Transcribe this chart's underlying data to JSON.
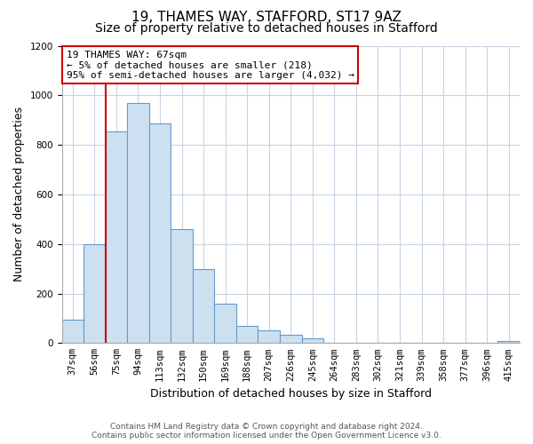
{
  "title": "19, THAMES WAY, STAFFORD, ST17 9AZ",
  "subtitle": "Size of property relative to detached houses in Stafford",
  "xlabel": "Distribution of detached houses by size in Stafford",
  "ylabel": "Number of detached properties",
  "categories": [
    "37sqm",
    "56sqm",
    "75sqm",
    "94sqm",
    "113sqm",
    "132sqm",
    "150sqm",
    "169sqm",
    "188sqm",
    "207sqm",
    "226sqm",
    "245sqm",
    "264sqm",
    "283sqm",
    "302sqm",
    "321sqm",
    "339sqm",
    "358sqm",
    "377sqm",
    "396sqm",
    "415sqm"
  ],
  "values": [
    95,
    400,
    855,
    970,
    885,
    460,
    300,
    160,
    70,
    50,
    32,
    18,
    0,
    0,
    0,
    0,
    0,
    0,
    0,
    0,
    8
  ],
  "bar_color": "#cce0f0",
  "bar_edge_color": "#6699cc",
  "highlight_color": "#cc0000",
  "annotation_title": "19 THAMES WAY: 67sqm",
  "annotation_line1": "← 5% of detached houses are smaller (218)",
  "annotation_line2": "95% of semi-detached houses are larger (4,032) →",
  "annotation_box_color": "#ffffff",
  "annotation_box_edge": "#cc0000",
  "ylim": [
    0,
    1200
  ],
  "yticks": [
    0,
    200,
    400,
    600,
    800,
    1000,
    1200
  ],
  "footer_line1": "Contains HM Land Registry data © Crown copyright and database right 2024.",
  "footer_line2": "Contains public sector information licensed under the Open Government Licence v3.0.",
  "bg_color": "#ffffff",
  "grid_color": "#c8d4e4",
  "title_fontsize": 11,
  "subtitle_fontsize": 10,
  "xlabel_fontsize": 9,
  "ylabel_fontsize": 9,
  "tick_fontsize": 7.5,
  "footer_fontsize": 6.5
}
